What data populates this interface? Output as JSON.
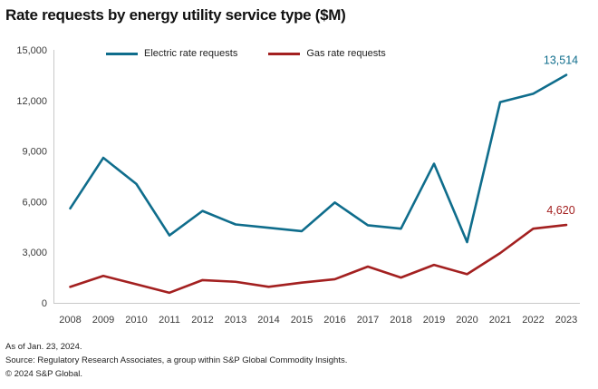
{
  "chart_data": {
    "type": "line",
    "title": "Rate requests by energy utility service type ($M)",
    "xlabel": "",
    "ylabel": "",
    "x": [
      "2008",
      "2009",
      "2010",
      "2011",
      "2012",
      "2013",
      "2014",
      "2015",
      "2016",
      "2017",
      "2018",
      "2019",
      "2020",
      "2021",
      "2022",
      "2023"
    ],
    "series": [
      {
        "id": "electric",
        "name": "Electric rate requests",
        "color": "#0F6D8C",
        "values": [
          5600,
          8600,
          7050,
          4000,
          5450,
          4650,
          4450,
          4250,
          5950,
          4600,
          4400,
          8250,
          3600,
          11900,
          12400,
          13514
        ],
        "end_label": "13,514"
      },
      {
        "id": "gas",
        "name": "Gas rate requests",
        "color": "#A32020",
        "values": [
          950,
          1600,
          1100,
          600,
          1350,
          1250,
          950,
          1200,
          1400,
          2150,
          1500,
          2250,
          1700,
          2950,
          4400,
          4620
        ],
        "end_label": "4,620"
      }
    ],
    "ylim": [
      0,
      15000
    ],
    "y_ticks": [
      {
        "value": 0,
        "label": "0"
      },
      {
        "value": 3000,
        "label": "3,000"
      },
      {
        "value": 6000,
        "label": "6,000"
      },
      {
        "value": 9000,
        "label": "9,000"
      },
      {
        "value": 12000,
        "label": "12,000"
      },
      {
        "value": 15000,
        "label": "15,000"
      }
    ],
    "grid": false,
    "legend_position": "top"
  },
  "footer": {
    "as_of": "As of Jan. 23, 2024.",
    "source": "Source: Regulatory Research Associates, a group within S&P Global Commodity Insights.",
    "copyright": "© 2024 S&P Global."
  }
}
